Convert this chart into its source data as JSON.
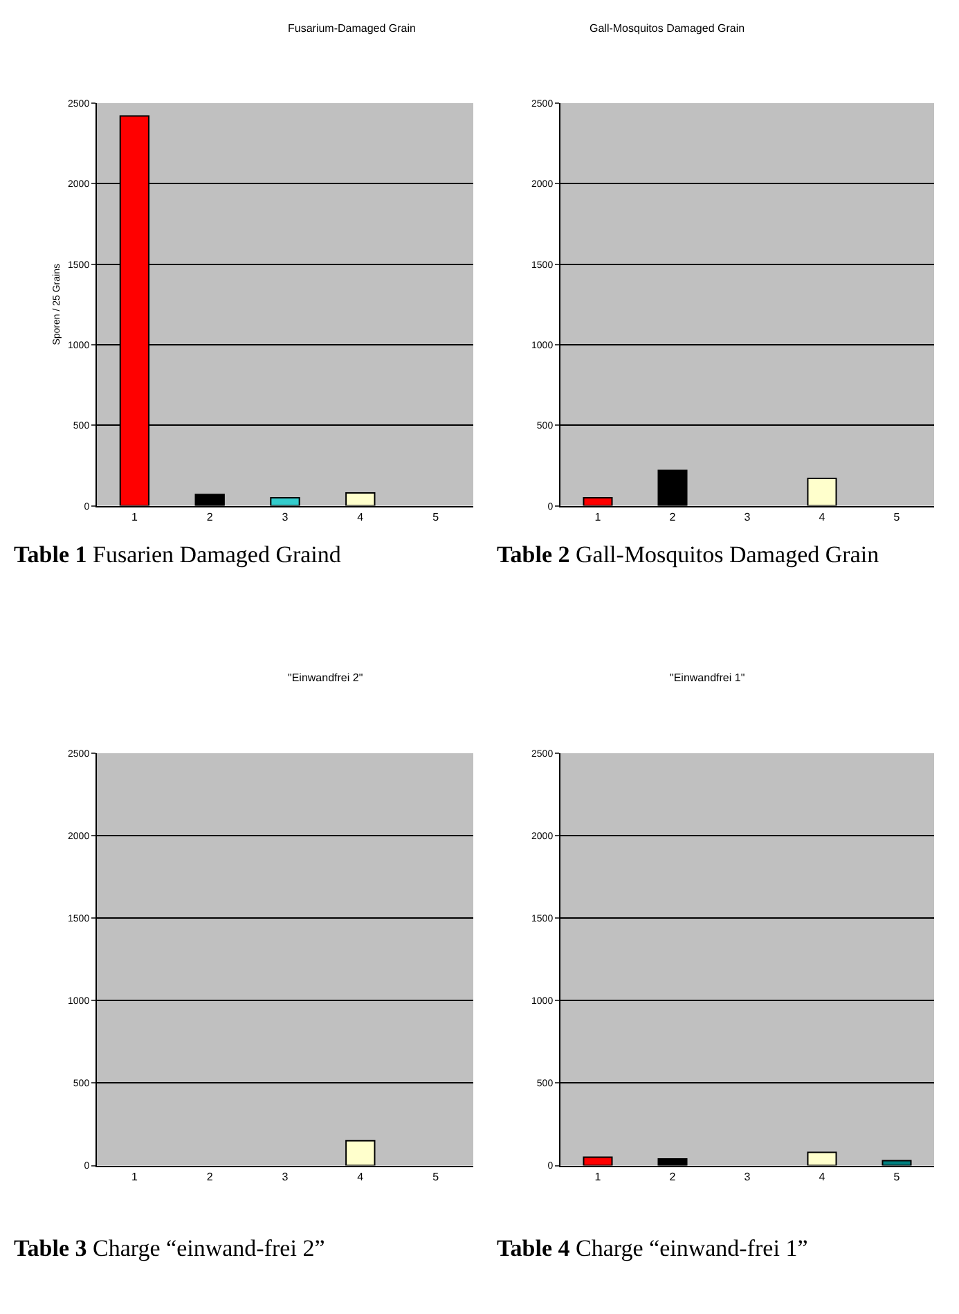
{
  "chart_data": [
    {
      "type": "bar",
      "title": "Fusarium-Damaged Grain",
      "ylabel": "Sporen / 25 Grains",
      "categories": [
        "1",
        "2",
        "3",
        "4",
        "5"
      ],
      "values": [
        2420,
        70,
        50,
        80,
        0
      ],
      "colors": [
        "#ff0000",
        "#000000",
        "#33cccc",
        "#ffffcc",
        null
      ],
      "ylim": [
        0,
        2500
      ],
      "yticks": [
        0,
        500,
        1000,
        1500,
        2000,
        2500
      ],
      "grid": "y",
      "annotations": [
        "Table 1 Fusarien Damaged Graind"
      ]
    },
    {
      "type": "bar",
      "title": "Gall-Mosquitos Damaged Grain",
      "categories": [
        "1",
        "2",
        "3",
        "4",
        "5"
      ],
      "values": [
        50,
        220,
        0,
        170,
        0
      ],
      "colors": [
        "#ff0000",
        "#000000",
        null,
        "#ffffcc",
        null
      ],
      "ylim": [
        0,
        2500
      ],
      "yticks": [
        0,
        500,
        1000,
        1500,
        2000,
        2500
      ],
      "grid": "y",
      "annotations": [
        "Table 2 Gall-Mosquitos Damaged Grain"
      ]
    },
    {
      "type": "bar",
      "title": "\"Einwandfrei 2\"",
      "categories": [
        "1",
        "2",
        "3",
        "4",
        "5"
      ],
      "values": [
        0,
        0,
        0,
        150,
        0
      ],
      "colors": [
        null,
        null,
        null,
        "#ffffcc",
        null
      ],
      "ylim": [
        0,
        2500
      ],
      "yticks": [
        0,
        500,
        1000,
        1500,
        2000,
        2500
      ],
      "grid": "y",
      "annotations": [
        "Table 3 Charge “einwand-frei 2”"
      ]
    },
    {
      "type": "bar",
      "title": "\"Einwandfrei 1\"",
      "categories": [
        "1",
        "2",
        "3",
        "4",
        "5"
      ],
      "values": [
        50,
        40,
        0,
        80,
        30
      ],
      "colors": [
        "#ff0000",
        "#000000",
        null,
        "#ffffcc",
        "#008080"
      ],
      "ylim": [
        0,
        2500
      ],
      "yticks": [
        0,
        500,
        1000,
        1500,
        2000,
        2500
      ],
      "grid": "y",
      "annotations": [
        "Table 4 Charge “einwand-frei 1”"
      ]
    }
  ]
}
